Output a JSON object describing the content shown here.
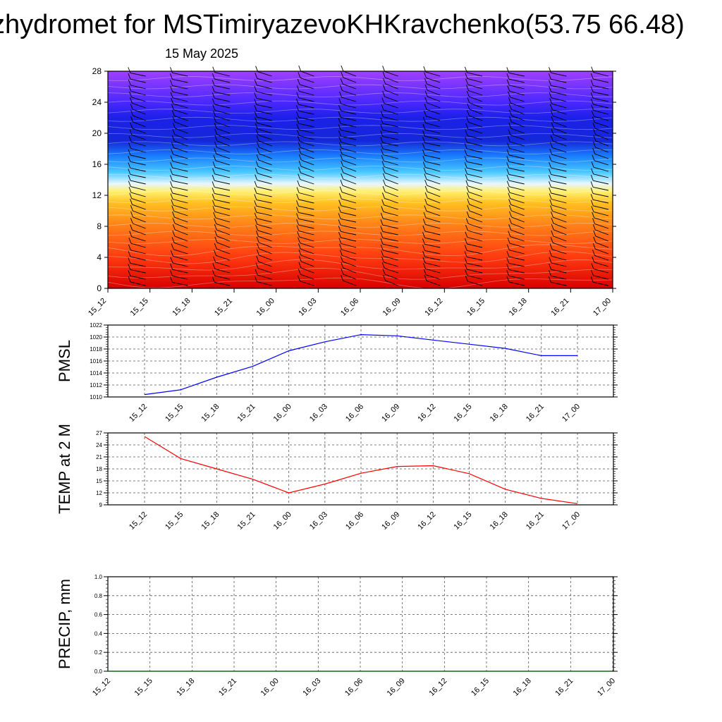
{
  "title": "zhydromet for MSTimiryazevoKHKravchenko(53.75 66.48)",
  "date": "15 May 2025",
  "colors": {
    "pmsl_line": "#0000ff",
    "temp_line": "#ff0000",
    "precip_line": "#006400",
    "barb": "#000000",
    "grid": "#888888"
  },
  "chart_data": [
    {
      "type": "heatmap",
      "name_hint": "cross-section",
      "x": [
        "15_12",
        "15_15",
        "15_18",
        "15_21",
        "16_00",
        "16_03",
        "16_06",
        "16_09",
        "16_12",
        "16_15",
        "16_18",
        "16_21",
        "17_00"
      ],
      "yticks": [
        0,
        4,
        8,
        12,
        16,
        20,
        24,
        28
      ],
      "ylim": [
        0,
        28
      ],
      "color_stops": [
        {
          "level": 0,
          "color": "#d80000"
        },
        {
          "level": 4,
          "color": "#ff3a10"
        },
        {
          "level": 8,
          "color": "#ff7e18"
        },
        {
          "level": 11,
          "color": "#ffc020"
        },
        {
          "level": 12.5,
          "color": "#fff070"
        },
        {
          "level": 13.5,
          "color": "#e8f6ff"
        },
        {
          "level": 15,
          "color": "#48c8ff"
        },
        {
          "level": 17,
          "color": "#1a80ff"
        },
        {
          "level": 19,
          "color": "#1428d8"
        },
        {
          "level": 22,
          "color": "#1c20e8"
        },
        {
          "level": 24,
          "color": "#4a28ff"
        },
        {
          "level": 28,
          "color": "#a040ff"
        }
      ]
    },
    {
      "type": "line",
      "x": [
        "15_12",
        "15_15",
        "15_18",
        "15_21",
        "16_00",
        "16_03",
        "16_06",
        "16_09",
        "16_12",
        "16_15",
        "16_18",
        "16_21",
        "17_00"
      ],
      "series": [
        {
          "values": [
            1010.4,
            1011.2,
            1013.3,
            1015.1,
            1017.7,
            1019.2,
            1020.4,
            1020.2,
            1019.5,
            1018.8,
            1018.1,
            1016.9,
            1016.9
          ]
        }
      ],
      "ylabel": "PMSL",
      "ylim": [
        1010,
        1022
      ],
      "yticks": [
        1010,
        1012,
        1014,
        1016,
        1018,
        1020,
        1022
      ],
      "grid": true
    },
    {
      "type": "line",
      "x": [
        "15_12",
        "15_15",
        "15_18",
        "15_21",
        "16_00",
        "16_03",
        "16_06",
        "16_09",
        "16_12",
        "16_15",
        "16_18",
        "16_21",
        "17_00"
      ],
      "series": [
        {
          "values": [
            26.1,
            20.6,
            18.0,
            15.4,
            12.0,
            14.2,
            16.9,
            18.6,
            18.8,
            16.8,
            12.9,
            10.6,
            9.3
          ]
        }
      ],
      "ylabel": "TEMP at 2 M",
      "ylim": [
        9,
        27
      ],
      "yticks": [
        9,
        12,
        15,
        18,
        21,
        24,
        27
      ],
      "grid": true
    },
    {
      "type": "line",
      "x": [
        "15_12",
        "15_15",
        "15_18",
        "15_21",
        "16_00",
        "16_03",
        "16_06",
        "16_09",
        "16_12",
        "16_15",
        "16_18",
        "16_21",
        "17_00"
      ],
      "series": [
        {
          "values": [
            0,
            0,
            0,
            0,
            0,
            0,
            0,
            0,
            0,
            0,
            0,
            0,
            0
          ]
        }
      ],
      "ylabel": "PRECIP, mm",
      "ylim": [
        0,
        1
      ],
      "yticks": [
        "0.0",
        "0.2",
        "0.4",
        "0.6",
        "0.8",
        "1.0"
      ],
      "grid": true
    }
  ]
}
